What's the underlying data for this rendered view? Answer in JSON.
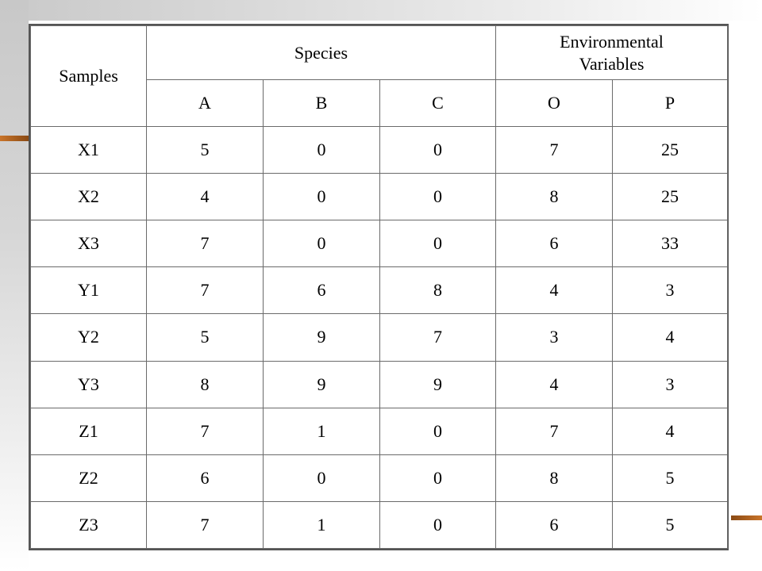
{
  "table": {
    "group_headers": {
      "samples": "Samples",
      "species": "Species",
      "environmental_line1": "Environmental",
      "environmental_line2": "Variables"
    },
    "columns": [
      "A",
      "B",
      "C",
      "O",
      "P"
    ],
    "rows": [
      {
        "sample": "X1",
        "values": [
          "5",
          "0",
          "0",
          "7",
          "25"
        ]
      },
      {
        "sample": "X2",
        "values": [
          "4",
          "0",
          "0",
          "8",
          "25"
        ]
      },
      {
        "sample": "X3",
        "values": [
          "7",
          "0",
          "0",
          "6",
          "33"
        ]
      },
      {
        "sample": "Y1",
        "values": [
          "7",
          "6",
          "8",
          "4",
          "3"
        ]
      },
      {
        "sample": "Y2",
        "values": [
          "5",
          "9",
          "7",
          "3",
          "4"
        ]
      },
      {
        "sample": "Y3",
        "values": [
          "8",
          "9",
          "9",
          "4",
          "3"
        ]
      },
      {
        "sample": "Z1",
        "values": [
          "7",
          "1",
          "0",
          "7",
          "4"
        ]
      },
      {
        "sample": "Z2",
        "values": [
          "6",
          "0",
          "0",
          "8",
          "5"
        ]
      },
      {
        "sample": "Z3",
        "values": [
          "7",
          "1",
          "0",
          "6",
          "5"
        ]
      }
    ]
  },
  "colors": {
    "accent": "#b8651f",
    "border": "#6a6a6a"
  }
}
